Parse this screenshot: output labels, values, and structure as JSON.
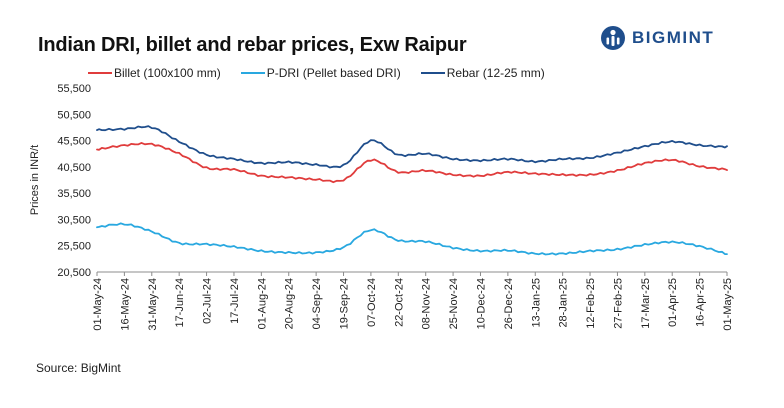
{
  "chart_data": {
    "type": "line",
    "title": "Indian DRI, billet and rebar prices, Exw  Raipur",
    "ylabel": "Prices in INR/t",
    "xlabel": "",
    "ylim": [
      20500,
      55500
    ],
    "yticks": [
      20500,
      25500,
      30500,
      35500,
      40500,
      45500,
      50500,
      55500
    ],
    "ytick_labels": [
      "20,500",
      "25,500",
      "30,500",
      "35,500",
      "40,500",
      "45,500",
      "50,500",
      "55,500"
    ],
    "x": [
      "01-May-24",
      "16-May-24",
      "31-May-24",
      "17-Jun-24",
      "02-Jul-24",
      "17-Jul-24",
      "01-Aug-24",
      "20-Aug-24",
      "04-Sep-24",
      "19-Sep-24",
      "07-Oct-24",
      "22-Oct-24",
      "08-Nov-24",
      "25-Nov-24",
      "10-Dec-24",
      "26-Dec-24",
      "13-Jan-25",
      "28-Jan-25",
      "12-Feb-25",
      "27-Feb-25",
      "17-Mar-25",
      "01-Apr-25",
      "16-Apr-25",
      "01-May-25"
    ],
    "grid": false,
    "legend_position": "top",
    "series": [
      {
        "name": "Billet (100x100 mm)",
        "color": "#e03c3c",
        "values": [
          43800,
          44600,
          44800,
          43000,
          40300,
          40000,
          38800,
          38500,
          38100,
          38000,
          41800,
          39500,
          39800,
          39000,
          38800,
          39500,
          39200,
          39000,
          39000,
          39800,
          41200,
          41800,
          40600,
          40000
        ]
      },
      {
        "name": "P-DRI (Pellet based DRI)",
        "color": "#29a8e0",
        "values": [
          29000,
          29600,
          28200,
          26000,
          25800,
          25300,
          24500,
          24200,
          24200,
          25200,
          28500,
          26500,
          26300,
          25100,
          24500,
          24600,
          24000,
          24000,
          24500,
          24800,
          25700,
          26200,
          25400,
          23900
        ]
      },
      {
        "name": "Rebar (12-25 mm)",
        "color": "#1f4e8c",
        "values": [
          47500,
          47700,
          48000,
          45300,
          42800,
          42000,
          41200,
          41400,
          40900,
          40800,
          45500,
          42800,
          43000,
          42000,
          41700,
          42000,
          41500,
          42000,
          42200,
          43200,
          44400,
          45300,
          44600,
          44300
        ]
      }
    ]
  },
  "source": "Source: BigMint",
  "logo": {
    "text": "BIGMINT",
    "icon": "bigmint-logo-icon",
    "color": "#1f4e8c"
  }
}
